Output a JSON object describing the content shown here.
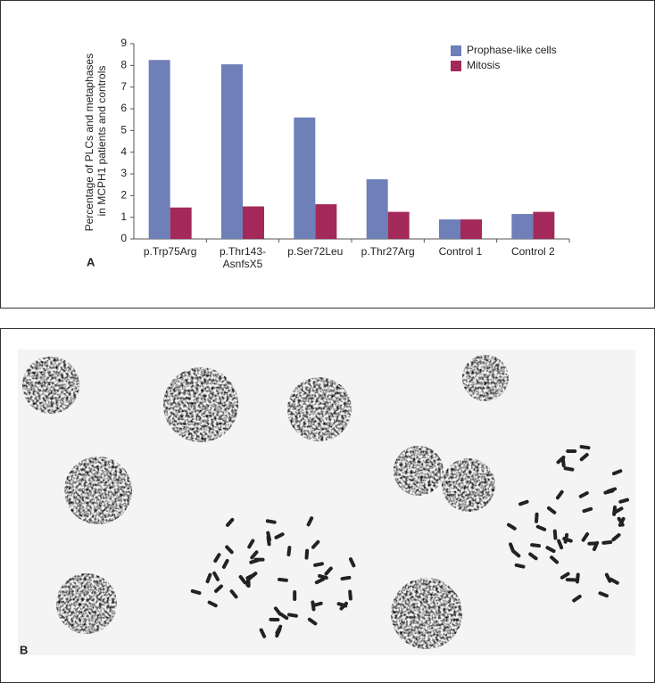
{
  "chart_data": {
    "type": "bar",
    "ylabel": "Percentage of PLCs and metaphases in MCPH1 patients and controls",
    "categories": [
      "p.Trp75Arg",
      "p.Thr143-AsnfsX5",
      "p.Ser72Leu",
      "p.Thr27Arg",
      "Control 1",
      "Control 2"
    ],
    "series": [
      {
        "name": "Prophase-like cells",
        "color": "#6f7fb8",
        "values": [
          8.25,
          8.05,
          5.6,
          2.75,
          0.9,
          1.15
        ]
      },
      {
        "name": "Mitosis",
        "color": "#a3295a",
        "values": [
          1.45,
          1.5,
          1.6,
          1.25,
          0.9,
          1.25
        ]
      }
    ],
    "ylim": [
      0,
      9
    ],
    "yticks": [
      0,
      1,
      2,
      3,
      4,
      5,
      6,
      7,
      8,
      9
    ],
    "legend": "upper right"
  },
  "panel_labels": [
    "A",
    "B"
  ]
}
